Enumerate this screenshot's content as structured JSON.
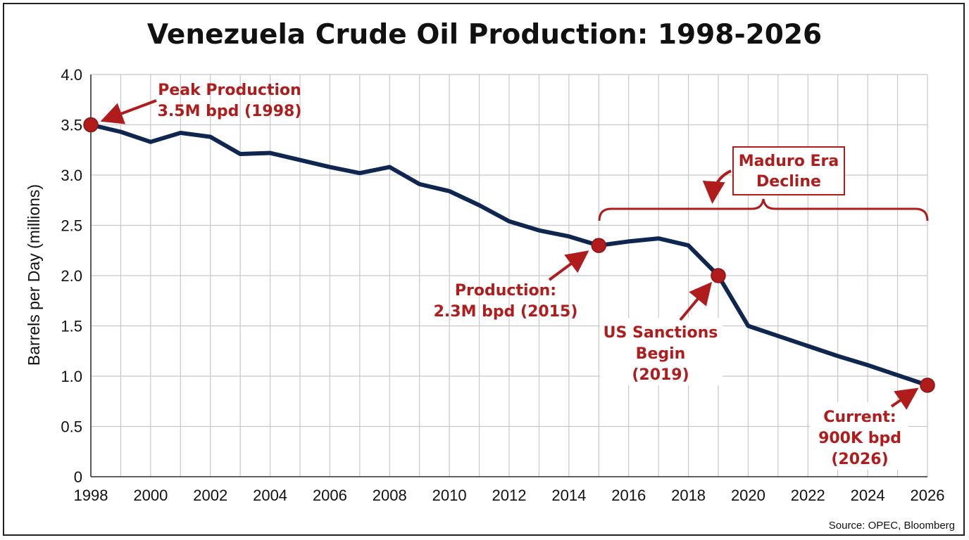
{
  "chart_data": {
    "type": "line",
    "title": "Venezuela Crude Oil Production: 1998-2026",
    "xlabel": "",
    "ylabel": "Barrels per Day (millions)",
    "xlim": [
      1998,
      2026
    ],
    "ylim": [
      0,
      4.0
    ],
    "grid": true,
    "x_ticks": [
      "1998",
      "2000",
      "2002",
      "2004",
      "2006",
      "2008",
      "2010",
      "2012",
      "2014",
      "2016",
      "2018",
      "2020",
      "2022",
      "2024",
      "2026"
    ],
    "y_ticks": [
      "0",
      "0.5",
      "1.0",
      "1.5",
      "2.0",
      "2.5",
      "3.0",
      "3.5",
      "4.0"
    ],
    "series": [
      {
        "name": "Crude Oil Production",
        "color": "#0f2650",
        "x": [
          1998,
          1999,
          2000,
          2001,
          2002,
          2003,
          2004,
          2005,
          2006,
          2007,
          2008,
          2009,
          2010,
          2011,
          2012,
          2013,
          2014,
          2015,
          2016,
          2017,
          2018,
          2019,
          2020,
          2021,
          2022,
          2023,
          2024,
          2025,
          2026
        ],
        "values": [
          3.5,
          3.43,
          3.33,
          3.42,
          3.38,
          3.21,
          3.22,
          3.15,
          3.08,
          3.02,
          3.08,
          2.91,
          2.84,
          2.7,
          2.54,
          2.45,
          2.39,
          2.3,
          2.34,
          2.37,
          2.3,
          2.0,
          1.5,
          1.4,
          1.3,
          1.2,
          1.11,
          1.01,
          0.91
        ]
      }
    ],
    "highlight_points": [
      {
        "x": 1998,
        "y": 3.5
      },
      {
        "x": 2015,
        "y": 2.3
      },
      {
        "x": 2019,
        "y": 2.0
      },
      {
        "x": 2026,
        "y": 0.91
      }
    ],
    "annotations": [
      {
        "lines": [
          "Peak Production",
          "3.5M bpd (1998)"
        ]
      },
      {
        "lines": [
          "Production:",
          "2.3M bpd (2015)"
        ]
      },
      {
        "lines": [
          "US Sanctions",
          "Begin",
          "(2019)"
        ]
      },
      {
        "lines": [
          "Current:",
          "900K bpd",
          "(2026)"
        ]
      },
      {
        "lines": [
          "Maduro Era",
          "Decline"
        ],
        "span": [
          2015,
          2026
        ]
      }
    ],
    "source": "Source: OPEC, Bloomberg",
    "colors": {
      "line": "#0f2650",
      "accent": "#b01c1c",
      "grid": "#c8c8c8"
    }
  }
}
